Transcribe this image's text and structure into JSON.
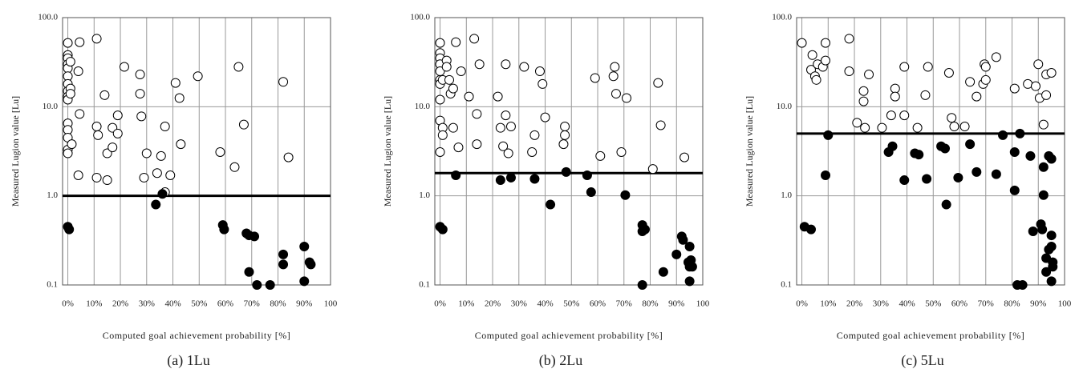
{
  "chart_data": [
    {
      "type": "scatter",
      "caption": "(a) 1Lu",
      "xlabel": "Computed goal achievement probability [%]",
      "ylabel": "Measured Lugion value [Lu]",
      "ylog": true,
      "grid": true,
      "threshold": 1,
      "xlim": [
        -2,
        100
      ],
      "ylim": [
        0.1,
        100
      ],
      "xticks": [
        {
          "value": 0,
          "label": "0%"
        },
        {
          "value": 10,
          "label": "10%"
        },
        {
          "value": 20,
          "label": "20%"
        },
        {
          "value": 30,
          "label": "30%"
        },
        {
          "value": 40,
          "label": "40%"
        },
        {
          "value": 50,
          "label": "50%"
        },
        {
          "value": 60,
          "label": "60%"
        },
        {
          "value": 70,
          "label": "70%"
        },
        {
          "value": 80,
          "label": "80%"
        },
        {
          "value": 90,
          "label": "90%"
        },
        100
      ],
      "yticks": [
        {
          "value": 0.1,
          "label": "0.1"
        },
        {
          "value": 1,
          "label": "1.0"
        },
        {
          "value": 10,
          "label": "10.0"
        },
        {
          "value": 100,
          "label": "100.0"
        }
      ],
      "series": [
        {
          "marker": "open",
          "color": "#000000",
          "x": [
            0,
            0,
            0,
            0,
            0,
            0,
            0,
            0,
            0,
            0,
            0,
            0,
            0,
            0,
            0,
            1,
            1,
            1,
            1.5,
            4,
            4.5,
            4.5,
            4,
            11,
            11,
            11.5,
            11,
            14,
            15,
            15,
            17,
            17,
            19,
            19,
            21.5,
            27.5,
            27.5,
            28,
            29,
            30,
            34,
            35.5,
            37,
            37,
            39,
            41,
            42.5,
            43,
            49.5,
            58,
            63.5,
            65,
            67,
            82,
            84
          ],
          "values": [
            52,
            38,
            35,
            30,
            27,
            22,
            18,
            15,
            13,
            12,
            6.5,
            5.5,
            4.5,
            3.3,
            3,
            32,
            16,
            14,
            3.8,
            25,
            53,
            8.3,
            1.7,
            58,
            6,
            4.8,
            1.6,
            13.5,
            3,
            1.5,
            3.5,
            5.8,
            8,
            5,
            28,
            23,
            14,
            7.8,
            1.6,
            3,
            1.8,
            2.8,
            6,
            1.1,
            1.7,
            18.5,
            12.5,
            3.8,
            22,
            3.1,
            2.1,
            28,
            6.3,
            19,
            2.7
          ]
        },
        {
          "marker": "filled",
          "color": "#000000",
          "x": [
            0,
            0.5,
            33.5,
            36,
            59,
            59.5,
            68,
            69,
            71,
            69,
            72,
            77,
            82,
            82,
            90,
            90,
            92,
            92.5
          ],
          "values": [
            0.45,
            0.42,
            0.8,
            1.05,
            0.47,
            0.42,
            0.38,
            0.36,
            0.35,
            0.14,
            0.1,
            0.1,
            0.22,
            0.17,
            0.27,
            0.11,
            0.18,
            0.17
          ]
        }
      ]
    },
    {
      "type": "scatter",
      "caption": "(b) 2Lu",
      "xlabel": "Computed goal achievement probability [%]",
      "ylabel": "Measured Lugion value [Lu]",
      "ylog": true,
      "grid": true,
      "threshold": 1.8,
      "xlim": [
        -2,
        100
      ],
      "ylim": [
        0.1,
        100
      ],
      "xticks": [
        {
          "value": 0,
          "label": "0%"
        },
        {
          "value": 10,
          "label": "10%"
        },
        {
          "value": 20,
          "label": "20%"
        },
        {
          "value": 30,
          "label": "30%"
        },
        {
          "value": 40,
          "label": "40%"
        },
        {
          "value": 50,
          "label": "50%"
        },
        {
          "value": 60,
          "label": "60%"
        },
        {
          "value": 70,
          "label": "70%"
        },
        {
          "value": 80,
          "label": "80%"
        },
        {
          "value": 90,
          "label": "90%"
        },
        100
      ],
      "yticks": [
        {
          "value": 0.1,
          "label": "0.1"
        },
        {
          "value": 1,
          "label": "1.0"
        },
        {
          "value": 10,
          "label": "10.0"
        },
        {
          "value": 100,
          "label": "100.0"
        }
      ],
      "series": [
        {
          "marker": "open",
          "color": "#000000",
          "x": [
            0,
            0,
            0,
            0,
            0,
            0,
            0,
            0,
            0,
            0,
            1,
            1,
            1,
            2.5,
            2.5,
            3.5,
            4,
            5,
            5,
            6,
            7,
            8,
            11,
            13,
            14,
            14,
            15,
            22,
            23,
            24,
            25,
            25,
            26,
            27,
            32,
            35,
            36,
            38,
            39,
            40,
            47,
            47.5,
            47.5,
            59,
            61,
            66,
            66.5,
            67,
            69,
            71,
            81,
            83,
            84,
            93
          ],
          "values": [
            52,
            40,
            35,
            30,
            25,
            20,
            18,
            12,
            7,
            3.1,
            20,
            5.8,
            4.8,
            33,
            28,
            20,
            14,
            16,
            5.8,
            53,
            3.5,
            25,
            13,
            58,
            8.3,
            3.8,
            30,
            13,
            5.8,
            3.6,
            30,
            8,
            3,
            6,
            28,
            3.1,
            4.8,
            25,
            18,
            7.6,
            3.8,
            6,
            4.8,
            21,
            2.8,
            22,
            28,
            14,
            3.1,
            12.5,
            2,
            18.5,
            6.2,
            2.7
          ]
        },
        {
          "marker": "filled",
          "color": "#000000",
          "x": [
            0,
            1,
            6,
            23,
            27,
            36,
            42,
            48,
            56,
            57.5,
            70.5,
            77,
            77,
            78,
            77,
            85,
            90,
            92,
            92.5,
            95,
            94.5,
            95,
            95.5,
            96,
            95
          ],
          "values": [
            0.45,
            0.42,
            1.7,
            1.5,
            1.6,
            1.55,
            0.8,
            1.85,
            1.7,
            1.1,
            1.02,
            0.47,
            0.4,
            0.42,
            0.1,
            0.14,
            0.22,
            0.35,
            0.32,
            0.27,
            0.18,
            0.16,
            0.19,
            0.16,
            0.11
          ]
        }
      ]
    },
    {
      "type": "scatter",
      "caption": "(c) 5Lu",
      "xlabel": "Computed goal achievement probability [%]",
      "ylabel": "Measured Lugion value [Lu]",
      "ylog": true,
      "grid": true,
      "threshold": 5,
      "xlim": [
        -2,
        100
      ],
      "ylim": [
        0.1,
        100
      ],
      "xticks": [
        {
          "value": 0,
          "label": "0%"
        },
        {
          "value": 10,
          "label": "10%"
        },
        {
          "value": 20,
          "label": "20%"
        },
        {
          "value": 30,
          "label": "30%"
        },
        {
          "value": 40,
          "label": "40%"
        },
        {
          "value": 50,
          "label": "50%"
        },
        {
          "value": 60,
          "label": "60%"
        },
        {
          "value": 70,
          "label": "70%"
        },
        {
          "value": 80,
          "label": "80%"
        },
        {
          "value": 90,
          "label": "90%"
        },
        100
      ],
      "yticks": [
        {
          "value": 0.1,
          "label": "0.1"
        },
        {
          "value": 1,
          "label": "1.0"
        },
        {
          "value": 10,
          "label": "10.0"
        },
        {
          "value": 100,
          "label": "100.0"
        }
      ],
      "series": [
        {
          "marker": "open",
          "color": "#000000",
          "x": [
            0,
            3.5,
            4,
            5,
            5.5,
            6,
            8,
            9,
            9,
            18,
            18,
            21,
            23.5,
            23.5,
            24,
            25.5,
            30.5,
            34,
            35.5,
            35.5,
            39,
            39,
            44,
            47,
            48,
            56,
            57,
            58,
            62,
            64,
            66.5,
            69,
            69.5,
            70,
            70,
            74,
            81,
            86,
            89,
            90,
            90.5,
            92,
            93,
            93,
            95
          ],
          "values": [
            52,
            26,
            38,
            22,
            20,
            30,
            28,
            52,
            33,
            58,
            25,
            6.6,
            15,
            11.5,
            5.8,
            23,
            5.8,
            8,
            16,
            13,
            28,
            8,
            5.8,
            13.5,
            28,
            24,
            7.5,
            6,
            6,
            19,
            13,
            18,
            30,
            28,
            20,
            36,
            16,
            18,
            17,
            30,
            12.5,
            6.3,
            23,
            13.5,
            24
          ]
        },
        {
          "marker": "filled",
          "color": "#000000",
          "x": [
            1,
            3.5,
            9,
            10,
            33,
            34.5,
            39,
            43,
            44.5,
            47.5,
            53,
            54.5,
            55,
            59.5,
            64,
            66.5,
            74,
            76.5,
            81,
            81,
            82,
            83,
            84,
            87,
            88,
            91,
            91.5,
            92,
            92,
            93,
            93,
            94,
            94,
            95,
            95,
            95.5,
            95.5,
            95,
            95
          ],
          "values": [
            0.45,
            0.42,
            1.7,
            4.8,
            3.1,
            3.6,
            1.5,
            3,
            2.9,
            1.55,
            3.6,
            3.4,
            0.8,
            1.6,
            3.8,
            1.85,
            1.75,
            4.8,
            3.1,
            1.15,
            0.1,
            5,
            0.1,
            2.8,
            0.4,
            0.48,
            0.42,
            1.02,
            2.1,
            0.2,
            0.14,
            0.25,
            2.8,
            0.36,
            0.27,
            0.18,
            0.16,
            0.11,
            2.6
          ]
        }
      ]
    }
  ]
}
